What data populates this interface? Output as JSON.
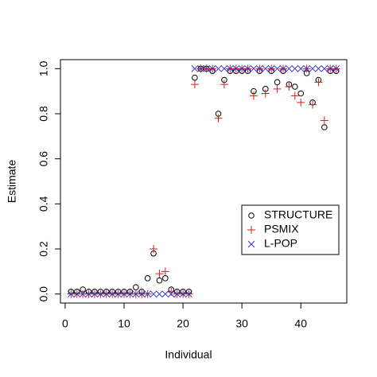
{
  "chart_data": {
    "type": "scatter",
    "xlabel": "Individual",
    "ylabel": "Estimate",
    "x": [
      1,
      2,
      3,
      4,
      5,
      6,
      7,
      8,
      9,
      10,
      11,
      12,
      13,
      14,
      15,
      16,
      17,
      18,
      19,
      20,
      21,
      22,
      23,
      24,
      25,
      26,
      27,
      28,
      29,
      30,
      31,
      32,
      33,
      34,
      35,
      36,
      37,
      38,
      39,
      40,
      41,
      42,
      43,
      44,
      45,
      46
    ],
    "series": [
      {
        "name": "STRUCTURE",
        "color": "#000000",
        "marker": "circle",
        "values": [
          0.01,
          0.01,
          0.02,
          0.01,
          0.01,
          0.01,
          0.01,
          0.01,
          0.01,
          0.01,
          0.01,
          0.03,
          0.01,
          0.07,
          0.18,
          0.06,
          0.07,
          0.02,
          0.01,
          0.01,
          0.01,
          0.96,
          1.0,
          1.0,
          0.99,
          0.8,
          0.95,
          0.99,
          0.99,
          0.99,
          0.99,
          0.9,
          0.99,
          0.91,
          0.99,
          0.94,
          0.99,
          0.93,
          0.92,
          0.89,
          0.98,
          0.85,
          0.95,
          0.74,
          0.99,
          0.99
        ]
      },
      {
        "name": "PSMIX",
        "color": "#cc2222",
        "marker": "plus",
        "values": [
          0,
          0,
          0,
          0,
          0,
          0,
          0,
          0,
          0,
          0,
          0,
          0,
          0,
          0,
          0.2,
          0.09,
          0.1,
          0.01,
          0,
          0,
          0,
          0.93,
          1.0,
          1.0,
          1.0,
          0.78,
          0.93,
          1.0,
          1.0,
          1.0,
          1.0,
          0.88,
          1.0,
          0.89,
          1.0,
          0.91,
          1.0,
          0.92,
          0.88,
          0.85,
          1.0,
          0.84,
          0.94,
          0.77,
          1.0,
          1.0
        ]
      },
      {
        "name": "L-POP",
        "color": "#3333cc",
        "marker": "cross",
        "values": [
          0,
          0,
          0,
          0,
          0,
          0,
          0,
          0,
          0,
          0,
          0,
          0,
          0,
          0,
          0,
          0,
          0,
          0,
          0,
          0,
          0,
          1,
          1,
          1,
          1,
          1,
          1,
          1,
          1,
          1,
          1,
          1,
          1,
          1,
          1,
          1,
          1,
          1,
          1,
          1,
          1,
          1,
          1,
          1,
          1,
          1
        ]
      }
    ],
    "xlim": [
      -0.8,
      47.8
    ],
    "ylim": [
      -0.04,
      1.04
    ],
    "xticks": [
      0,
      10,
      20,
      30,
      40
    ],
    "yticks": [
      {
        "value": 0,
        "label": "0.0"
      },
      0.2,
      0.4,
      0.6,
      0.8,
      {
        "value": 1,
        "label": "1.0"
      }
    ],
    "legend": "right"
  }
}
